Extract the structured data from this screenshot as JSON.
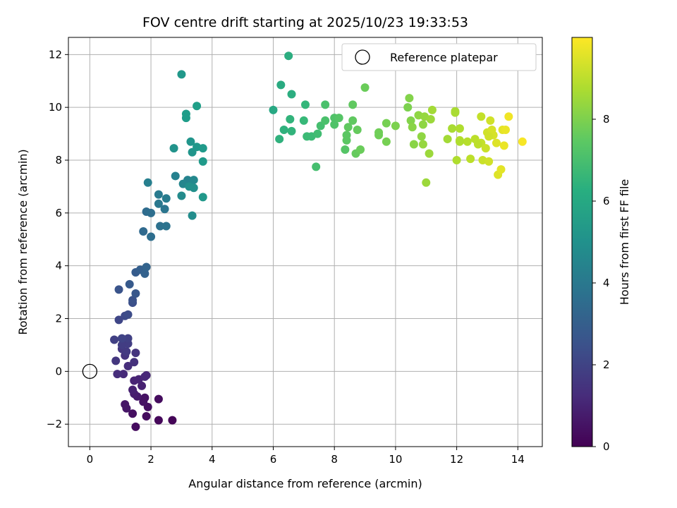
{
  "chart_data": {
    "type": "scatter",
    "title": "FOV centre drift starting at 2025/10/23 19:33:53",
    "xlabel": "Angular distance from reference (arcmin)",
    "ylabel": "Rotation from reference (arcmin)",
    "xlim": [
      -0.7,
      14.8
    ],
    "ylim": [
      -2.85,
      12.65
    ],
    "xticks": [
      0,
      2,
      4,
      6,
      8,
      10,
      12,
      14
    ],
    "yticks": [
      -2,
      0,
      2,
      4,
      6,
      8,
      10,
      12
    ],
    "grid": true,
    "legend": {
      "position": "top-right",
      "entries": [
        "Reference platepar"
      ]
    },
    "reference_point": {
      "x": 0,
      "y": 0,
      "label": "Reference platepar"
    },
    "colorbar": {
      "label": "Hours from first FF file",
      "range": [
        0,
        10
      ],
      "ticks": [
        0,
        2,
        4,
        6,
        8
      ],
      "colormap": "viridis"
    },
    "points": [
      [
        2.7,
        -1.85,
        0.1
      ],
      [
        2.25,
        -1.85,
        0.2
      ],
      [
        1.5,
        -2.1,
        0.3
      ],
      [
        1.85,
        -1.7,
        0.3
      ],
      [
        1.4,
        -1.6,
        0.4
      ],
      [
        2.25,
        -1.05,
        0.3
      ],
      [
        1.9,
        -1.35,
        0.4
      ],
      [
        1.75,
        -1.15,
        0.5
      ],
      [
        1.2,
        -1.4,
        0.6
      ],
      [
        1.15,
        -1.25,
        0.6
      ],
      [
        1.8,
        -1.0,
        0.5
      ],
      [
        1.55,
        -0.95,
        0.7
      ],
      [
        1.45,
        -0.85,
        0.8
      ],
      [
        1.4,
        -0.7,
        0.9
      ],
      [
        1.7,
        -0.55,
        0.9
      ],
      [
        1.6,
        -0.3,
        1.0
      ],
      [
        1.45,
        -0.35,
        1.0
      ],
      [
        1.8,
        -0.2,
        1.1
      ],
      [
        1.85,
        -0.15,
        1.1
      ],
      [
        1.1,
        -0.1,
        1.2
      ],
      [
        0.9,
        -0.1,
        1.3
      ],
      [
        1.25,
        0.2,
        1.3
      ],
      [
        1.45,
        0.35,
        1.4
      ],
      [
        1.5,
        0.7,
        1.5
      ],
      [
        1.15,
        0.6,
        1.5
      ],
      [
        0.85,
        0.4,
        1.6
      ],
      [
        1.05,
        0.85,
        1.6
      ],
      [
        1.2,
        0.75,
        1.7
      ],
      [
        1.25,
        1.05,
        1.8
      ],
      [
        1.05,
        1.0,
        1.8
      ],
      [
        0.8,
        1.2,
        1.9
      ],
      [
        1.25,
        1.25,
        1.9
      ],
      [
        1.05,
        1.25,
        2.0
      ],
      [
        0.95,
        1.95,
        2.1
      ],
      [
        1.15,
        2.1,
        2.2
      ],
      [
        1.25,
        2.15,
        2.3
      ],
      [
        1.4,
        2.6,
        2.4
      ],
      [
        1.4,
        2.7,
        2.5
      ],
      [
        0.95,
        3.1,
        2.6
      ],
      [
        1.5,
        2.95,
        2.7
      ],
      [
        1.3,
        3.3,
        2.8
      ],
      [
        1.5,
        3.75,
        2.9
      ],
      [
        1.65,
        3.85,
        3.0
      ],
      [
        1.8,
        3.7,
        3.1
      ],
      [
        1.85,
        3.95,
        3.2
      ],
      [
        1.75,
        5.3,
        3.4
      ],
      [
        1.85,
        6.05,
        3.5
      ],
      [
        2.0,
        6.0,
        3.6
      ],
      [
        2.0,
        5.1,
        3.6
      ],
      [
        2.3,
        5.5,
        3.7
      ],
      [
        2.5,
        5.5,
        3.8
      ],
      [
        2.45,
        6.15,
        3.9
      ],
      [
        2.25,
        6.35,
        4.0
      ],
      [
        2.25,
        6.7,
        4.1
      ],
      [
        2.5,
        6.55,
        4.2
      ],
      [
        1.9,
        7.15,
        4.3
      ],
      [
        2.8,
        7.4,
        4.4
      ],
      [
        3.2,
        7.25,
        4.5
      ],
      [
        3.05,
        7.1,
        4.6
      ],
      [
        3.4,
        7.25,
        4.7
      ],
      [
        3.0,
        6.65,
        4.8
      ],
      [
        3.35,
        5.9,
        4.9
      ],
      [
        3.4,
        6.95,
        5.0
      ],
      [
        3.25,
        7.0,
        5.0
      ],
      [
        2.75,
        8.45,
        5.1
      ],
      [
        3.3,
        8.7,
        5.2
      ],
      [
        3.35,
        8.3,
        5.2
      ],
      [
        3.5,
        8.5,
        5.3
      ],
      [
        3.7,
        7.95,
        5.4
      ],
      [
        3.7,
        8.45,
        5.4
      ],
      [
        3.7,
        6.6,
        5.3
      ],
      [
        3.15,
        9.6,
        5.5
      ],
      [
        3.15,
        9.75,
        5.5
      ],
      [
        3.5,
        10.05,
        5.6
      ],
      [
        3.0,
        11.25,
        5.3
      ],
      [
        6.0,
        9.9,
        6.0
      ],
      [
        6.25,
        10.85,
        6.1
      ],
      [
        6.6,
        10.5,
        6.2
      ],
      [
        6.5,
        11.95,
        6.2
      ],
      [
        6.2,
        8.8,
        6.4
      ],
      [
        6.35,
        9.15,
        6.4
      ],
      [
        6.55,
        9.55,
        6.5
      ],
      [
        6.6,
        9.1,
        6.5
      ],
      [
        7.05,
        10.1,
        6.6
      ],
      [
        7.0,
        9.5,
        6.7
      ],
      [
        7.1,
        8.9,
        6.8
      ],
      [
        7.25,
        8.9,
        6.8
      ],
      [
        7.45,
        9.0,
        6.9
      ],
      [
        7.4,
        7.75,
        7.0
      ],
      [
        7.55,
        9.3,
        7.0
      ],
      [
        7.7,
        9.5,
        7.1
      ],
      [
        7.7,
        10.1,
        7.1
      ],
      [
        8.0,
        9.6,
        7.2
      ],
      [
        8.0,
        9.35,
        7.2
      ],
      [
        8.15,
        9.6,
        7.3
      ],
      [
        8.35,
        8.4,
        7.3
      ],
      [
        8.4,
        8.75,
        7.4
      ],
      [
        8.4,
        8.95,
        7.4
      ],
      [
        8.45,
        9.25,
        7.5
      ],
      [
        8.6,
        10.1,
        7.5
      ],
      [
        8.6,
        9.5,
        7.5
      ],
      [
        8.7,
        8.25,
        7.6
      ],
      [
        8.75,
        9.15,
        7.6
      ],
      [
        8.85,
        8.4,
        7.7
      ],
      [
        9.0,
        10.75,
        7.7
      ],
      [
        9.45,
        8.95,
        7.8
      ],
      [
        9.45,
        9.05,
        7.8
      ],
      [
        9.7,
        9.4,
        7.9
      ],
      [
        9.7,
        8.7,
        7.9
      ],
      [
        10.0,
        9.3,
        8.0
      ],
      [
        10.4,
        10.0,
        8.0
      ],
      [
        10.45,
        10.35,
        8.1
      ],
      [
        10.5,
        9.5,
        8.1
      ],
      [
        10.55,
        9.25,
        8.2
      ],
      [
        10.6,
        8.6,
        8.2
      ],
      [
        10.75,
        9.7,
        8.3
      ],
      [
        10.85,
        8.9,
        8.3
      ],
      [
        10.9,
        9.35,
        8.3
      ],
      [
        10.9,
        8.6,
        8.4
      ],
      [
        10.95,
        9.65,
        8.4
      ],
      [
        11.0,
        7.15,
        8.5
      ],
      [
        11.1,
        8.25,
        8.5
      ],
      [
        11.15,
        9.55,
        8.5
      ],
      [
        11.2,
        9.9,
        8.6
      ],
      [
        11.7,
        8.8,
        8.6
      ],
      [
        11.85,
        9.2,
        8.7
      ],
      [
        11.95,
        9.8,
        8.7
      ],
      [
        11.95,
        9.85,
        8.7
      ],
      [
        12.0,
        8.0,
        8.8
      ],
      [
        12.1,
        9.2,
        8.8
      ],
      [
        12.1,
        8.75,
        8.9
      ],
      [
        12.35,
        8.7,
        8.9
      ],
      [
        12.45,
        8.05,
        9.0
      ],
      [
        12.6,
        8.8,
        9.0
      ],
      [
        12.8,
        8.65,
        9.1
      ],
      [
        12.8,
        9.65,
        9.1
      ],
      [
        12.85,
        8.0,
        9.2
      ],
      [
        12.95,
        8.45,
        9.2
      ],
      [
        13.0,
        9.05,
        9.3
      ],
      [
        13.05,
        7.95,
        9.3
      ],
      [
        13.1,
        9.5,
        9.3
      ],
      [
        13.15,
        9.15,
        9.4
      ],
      [
        13.2,
        8.95,
        9.4
      ],
      [
        13.3,
        8.65,
        9.5
      ],
      [
        13.35,
        7.45,
        9.5
      ],
      [
        13.45,
        7.65,
        9.6
      ],
      [
        13.5,
        9.15,
        9.6
      ],
      [
        13.55,
        8.55,
        9.7
      ],
      [
        13.6,
        9.15,
        9.7
      ],
      [
        13.7,
        9.65,
        9.8
      ],
      [
        14.15,
        8.7,
        9.9
      ],
      [
        13.05,
        8.9,
        9.3
      ],
      [
        12.7,
        8.6,
        9.0
      ],
      [
        12.1,
        8.7,
        8.8
      ]
    ]
  }
}
